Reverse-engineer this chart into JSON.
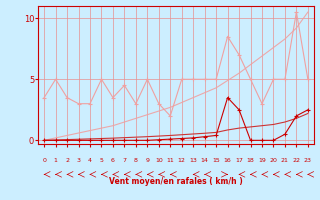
{
  "xlabel": "Vent moyen/en rafales ( km/h )",
  "background_color": "#cceeff",
  "grid_color": "#e89090",
  "x_values": [
    0,
    1,
    2,
    3,
    4,
    5,
    6,
    7,
    8,
    9,
    10,
    11,
    12,
    13,
    14,
    15,
    16,
    17,
    18,
    19,
    20,
    21,
    22,
    23
  ],
  "rafales_y": [
    3.5,
    5.0,
    3.5,
    3.0,
    3.0,
    5.0,
    3.5,
    4.5,
    3.0,
    5.0,
    3.0,
    2.0,
    5.0,
    5.0,
    5.0,
    5.0,
    8.5,
    7.0,
    5.0,
    3.0,
    5.0,
    5.0,
    10.5,
    5.0
  ],
  "trend_rafales_y": [
    0.0,
    0.2,
    0.4,
    0.6,
    0.8,
    1.0,
    1.2,
    1.5,
    1.8,
    2.1,
    2.4,
    2.7,
    3.1,
    3.5,
    3.9,
    4.3,
    4.9,
    5.5,
    6.2,
    6.9,
    7.6,
    8.3,
    9.2,
    10.5
  ],
  "moyen_y": [
    0.0,
    0.0,
    0.0,
    0.0,
    0.0,
    0.0,
    0.0,
    0.0,
    0.0,
    0.0,
    0.05,
    0.1,
    0.15,
    0.2,
    0.3,
    0.4,
    3.5,
    2.5,
    0.0,
    0.0,
    0.0,
    0.5,
    2.0,
    2.5
  ],
  "trend_moyen_y": [
    0.0,
    0.03,
    0.06,
    0.09,
    0.12,
    0.15,
    0.18,
    0.22,
    0.26,
    0.3,
    0.35,
    0.4,
    0.46,
    0.52,
    0.58,
    0.65,
    0.85,
    1.0,
    1.1,
    1.2,
    1.3,
    1.5,
    1.8,
    2.2
  ],
  "rafales_color": "#f0a0a0",
  "moyen_color": "#cc0000",
  "trend_rafales_color": "#f0a0a0",
  "trend_moyen_color": "#cc3333",
  "ylim": [
    -0.3,
    11.0
  ],
  "xlim": [
    -0.5,
    23.5
  ],
  "yticks": [
    0,
    5,
    10
  ],
  "xticks": [
    0,
    1,
    2,
    3,
    4,
    5,
    6,
    7,
    8,
    9,
    10,
    11,
    12,
    13,
    14,
    15,
    16,
    17,
    18,
    19,
    20,
    21,
    22,
    23
  ],
  "wind_arrows": [
    225,
    225,
    225,
    270,
    270,
    225,
    270,
    225,
    225,
    225,
    225,
    200,
    180,
    225,
    200,
    180,
    160,
    270,
    270,
    270,
    270,
    270,
    315,
    270
  ]
}
